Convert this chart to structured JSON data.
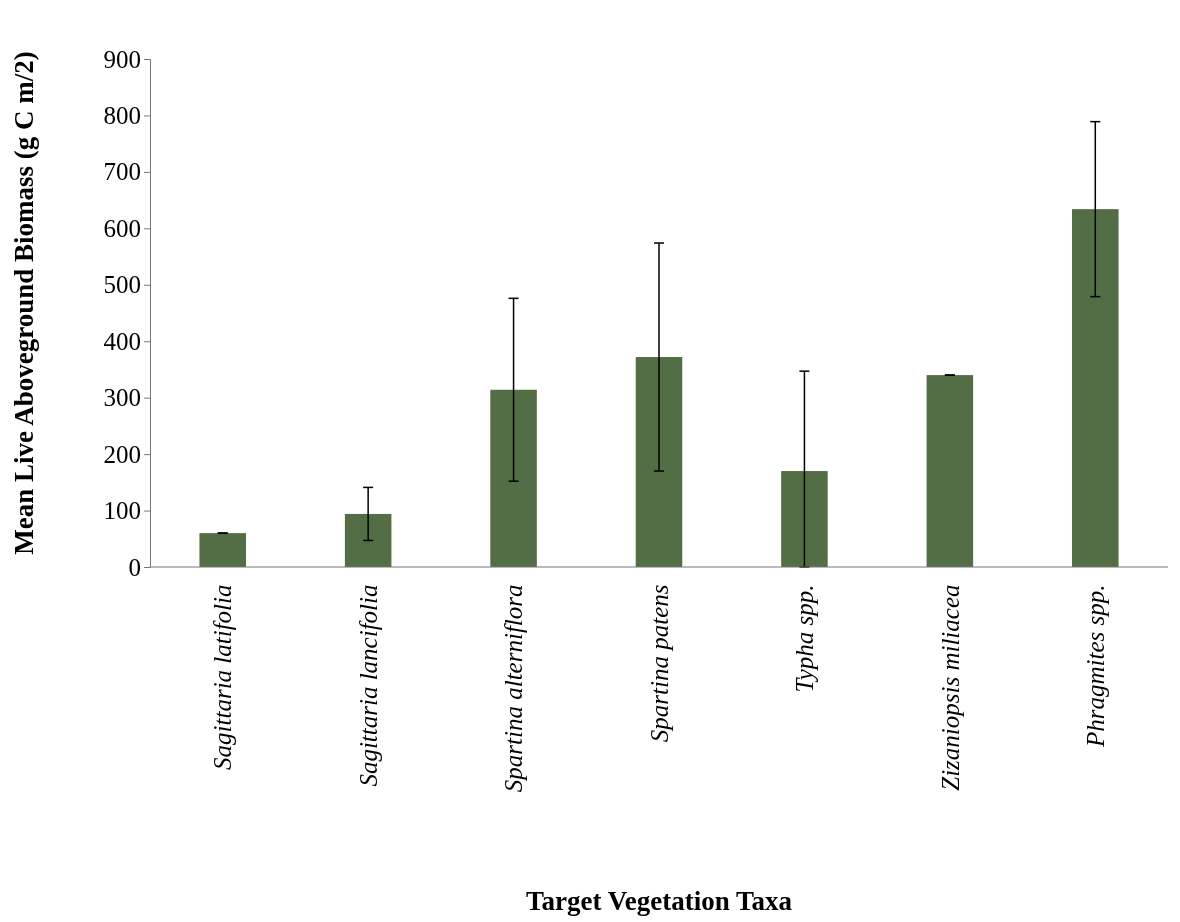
{
  "chart_data": {
    "type": "bar",
    "xlabel": "Target Vegetation Taxa",
    "ylabel": "Mean Live Aboveground Biomass (g C m/2)",
    "categories": [
      "Sagittaria latifolia",
      "Sagittaria lancifolia",
      "Spartina alterniflora",
      "Spartina patens",
      "Typha spp.",
      "Zizaniopsis miliacea",
      "Phragmites spp."
    ],
    "values": [
      60,
      94,
      314,
      372,
      170,
      340,
      634
    ],
    "errors": [
      0,
      47,
      162,
      202,
      [
        0,
        347
      ],
      0,
      155
    ],
    "color": "#536e45",
    "ylim": [
      0,
      900
    ],
    "yticks": [
      0,
      100,
      200,
      300,
      400,
      500,
      600,
      700,
      800,
      900
    ],
    "grid": false
  }
}
